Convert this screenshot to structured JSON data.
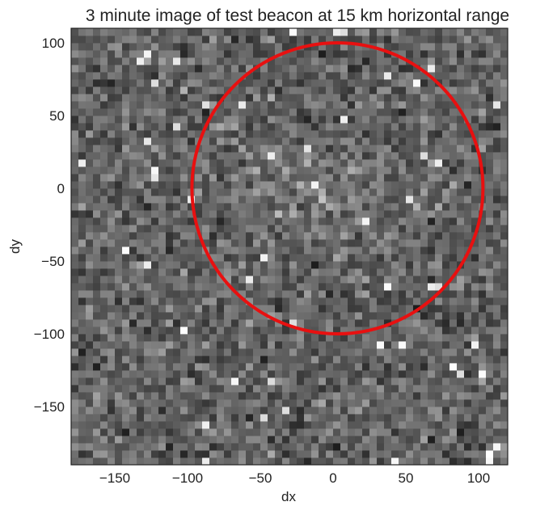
{
  "chart_data": {
    "type": "heatmap",
    "title": "3 minute image of test beacon at 15 km horizontal range",
    "xlabel": "dx",
    "ylabel": "dy",
    "xlim": [
      -180,
      120
    ],
    "ylim": [
      -190,
      110
    ],
    "x_ticks": [
      -150,
      -100,
      -50,
      0,
      50,
      100
    ],
    "y_ticks": [
      100,
      50,
      0,
      -50,
      -100,
      -150
    ],
    "x_tick_labels": [
      "−150",
      "−100",
      "−50",
      "0",
      "50",
      "100"
    ],
    "y_tick_labels": [
      "100",
      "50",
      "0",
      "−50",
      "−100",
      "−150"
    ],
    "colormap": "gray",
    "grid": false,
    "description_of_values": "noise pixels with a brighter diffuse blob near (-15, 0)",
    "overlay_circle": {
      "center": [
        3,
        0
      ],
      "radius": 100,
      "color": "#e81010"
    }
  }
}
